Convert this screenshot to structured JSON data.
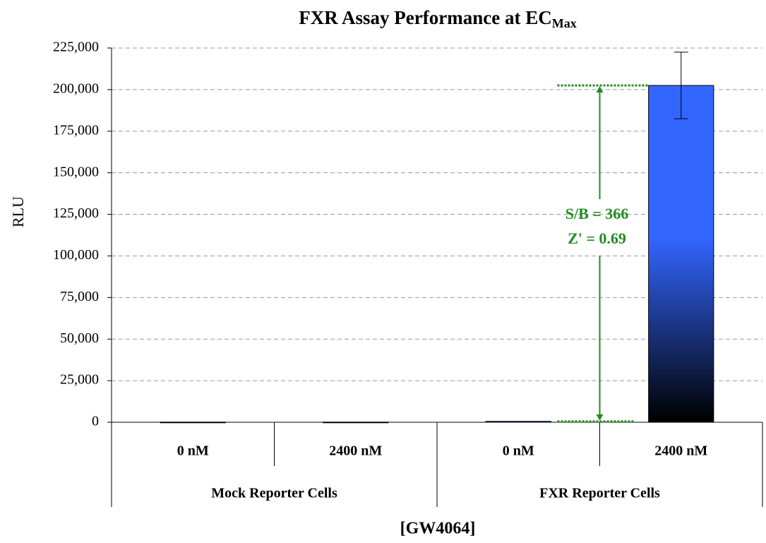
{
  "chart_data": {
    "type": "bar",
    "title": "FXR Assay Performance at EC",
    "title_subscript": "Max",
    "y_label": "RLU",
    "x_label": "[GW4064]",
    "groups": [
      {
        "name": "Mock Reporter Cells",
        "categories": [
          "0 nM",
          "2400 nM"
        ],
        "values": [
          100,
          100
        ],
        "errors": [
          null,
          null
        ]
      },
      {
        "name": "FXR Reporter Cells",
        "categories": [
          "0 nM",
          "2400 nM"
        ],
        "values": [
          553,
          202500
        ],
        "errors": [
          null,
          20000
        ]
      }
    ],
    "color": "#3366ff",
    "ylim": [
      0,
      225000
    ],
    "yticks": [
      0,
      {
        "value": 25000,
        "label": "25,000"
      },
      {
        "value": 50000,
        "label": "50,000"
      },
      {
        "value": 75000,
        "label": "75,000"
      },
      {
        "value": 100000,
        "label": "100,000"
      },
      {
        "value": 125000,
        "label": "125,000"
      },
      {
        "value": 150000,
        "label": "150,000"
      },
      {
        "value": 175000,
        "label": "175,000"
      },
      {
        "value": 200000,
        "label": "200,000"
      },
      {
        "value": 225000,
        "label": "225,000"
      }
    ],
    "grid": true,
    "annotations": [
      "S/B = 366",
      "Z' = 0.69"
    ],
    "annotation_color": "#228b22"
  }
}
